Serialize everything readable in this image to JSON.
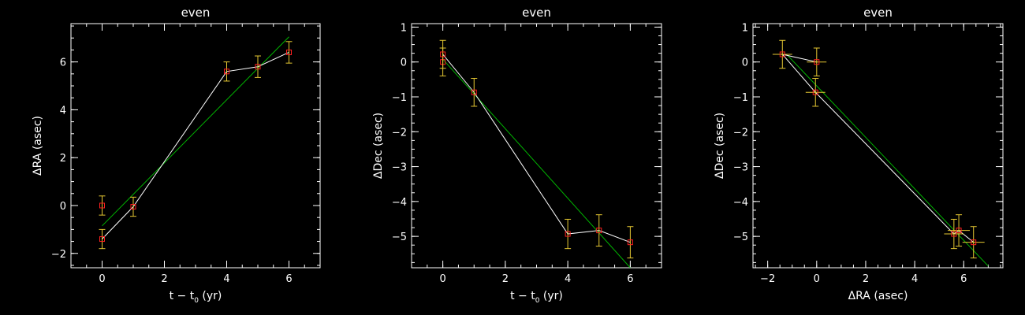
{
  "colors": {
    "background": "#000000",
    "axes": "#ffffff",
    "data_line": "#ffffff",
    "fit_line": "#00b400",
    "marker": "#ff2020",
    "errorbar": "#e6c832"
  },
  "chart_data": [
    {
      "type": "scatter",
      "title": "even",
      "xlabel": {
        "main": "t − t",
        "sub": "0",
        "tail": " (yr)"
      },
      "ylabel": "ΔRA (asec)",
      "xlim": [
        -1,
        7
      ],
      "ylim": [
        -2.6,
        7.6
      ],
      "xticks": [
        0,
        2,
        4,
        6
      ],
      "yticks": [
        -2,
        0,
        2,
        4,
        6
      ],
      "xminor": 0.5,
      "yminor": 0.5,
      "points": [
        {
          "x": 0,
          "y": -1.4,
          "yerr": 0.4
        },
        {
          "x": 0,
          "y": 0.0,
          "yerr": 0.4
        },
        {
          "x": 1,
          "y": -0.05,
          "yerr": 0.4
        },
        {
          "x": 4,
          "y": 5.6,
          "yerr": 0.4
        },
        {
          "x": 5,
          "y": 5.8,
          "yerr": 0.45
        },
        {
          "x": 6,
          "y": 6.4,
          "yerr": 0.45
        }
      ],
      "data_path": [
        [
          0,
          -1.4
        ],
        [
          1,
          -0.05
        ],
        [
          4,
          5.6
        ],
        [
          5,
          5.8
        ],
        [
          6,
          6.4
        ]
      ],
      "fit_line": [
        [
          0,
          -0.85
        ],
        [
          6,
          7.05
        ]
      ]
    },
    {
      "type": "scatter",
      "title": "even",
      "xlabel": {
        "main": "t − t",
        "sub": "0",
        "tail": " (yr)"
      },
      "ylabel": "ΔDec (asec)",
      "xlim": [
        -1,
        7
      ],
      "ylim": [
        -5.9,
        1.1
      ],
      "xticks": [
        0,
        2,
        4,
        6
      ],
      "yticks": [
        -5,
        -4,
        -3,
        -2,
        -1,
        0,
        1
      ],
      "xminor": 0.5,
      "yminor": 0.25,
      "points": [
        {
          "x": 0,
          "y": 0.0,
          "yerr": 0.4
        },
        {
          "x": 0,
          "y": 0.22,
          "yerr": 0.4
        },
        {
          "x": 1,
          "y": -0.87,
          "yerr": 0.4
        },
        {
          "x": 4,
          "y": -4.93,
          "yerr": 0.42
        },
        {
          "x": 5,
          "y": -4.83,
          "yerr": 0.45
        },
        {
          "x": 6,
          "y": -5.17,
          "yerr": 0.45
        }
      ],
      "data_path": [
        [
          0,
          0.22
        ],
        [
          1,
          -0.87
        ],
        [
          4,
          -4.93
        ],
        [
          5,
          -4.83
        ],
        [
          6,
          -5.17
        ]
      ],
      "fit_line": [
        [
          0,
          0.08
        ],
        [
          6,
          -5.9
        ]
      ]
    },
    {
      "type": "scatter",
      "title": "even",
      "xlabel": {
        "main": "ΔRA (asec)",
        "sub": "",
        "tail": ""
      },
      "ylabel": "ΔDec (asec)",
      "xlim": [
        -2.6,
        7.6
      ],
      "ylim": [
        -5.9,
        1.1
      ],
      "xticks": [
        -2,
        0,
        2,
        4,
        6
      ],
      "yticks": [
        -5,
        -4,
        -3,
        -2,
        -1,
        0,
        1
      ],
      "xminor": 0.5,
      "yminor": 0.25,
      "points": [
        {
          "x": -1.4,
          "y": 0.22,
          "xerr": 0.4,
          "yerr": 0.4
        },
        {
          "x": 0.0,
          "y": 0.0,
          "xerr": 0.4,
          "yerr": 0.4
        },
        {
          "x": -0.05,
          "y": -0.87,
          "xerr": 0.4,
          "yerr": 0.4
        },
        {
          "x": 5.6,
          "y": -4.93,
          "xerr": 0.4,
          "yerr": 0.42
        },
        {
          "x": 5.8,
          "y": -4.83,
          "xerr": 0.45,
          "yerr": 0.45
        },
        {
          "x": 6.4,
          "y": -5.17,
          "xerr": 0.45,
          "yerr": 0.45
        }
      ],
      "data_path": [
        [
          0.0,
          0.0
        ],
        [
          -1.4,
          0.22
        ],
        [
          -0.05,
          -0.87
        ],
        [
          5.6,
          -4.93
        ],
        [
          5.8,
          -4.83
        ],
        [
          6.4,
          -5.17
        ]
      ],
      "fit_line": [
        [
          -1.2,
          0.2
        ],
        [
          7.0,
          -5.85
        ]
      ]
    }
  ]
}
